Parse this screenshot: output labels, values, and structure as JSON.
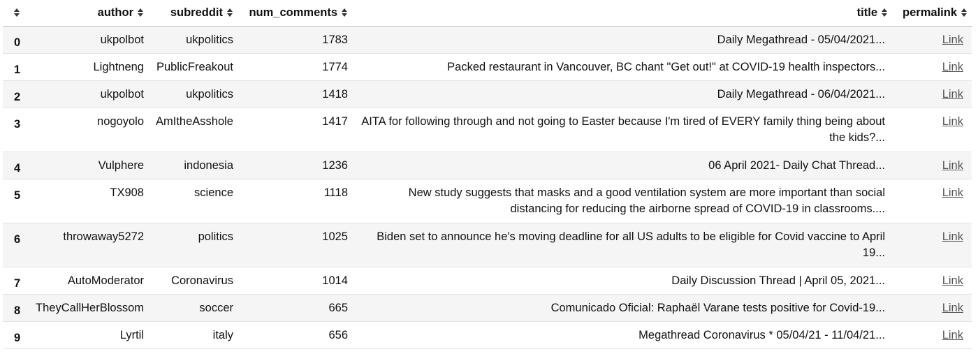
{
  "columns": [
    {
      "key": "index",
      "label": ""
    },
    {
      "key": "author",
      "label": "author"
    },
    {
      "key": "subreddit",
      "label": "subreddit"
    },
    {
      "key": "num_comments",
      "label": "num_comments"
    },
    {
      "key": "title",
      "label": "title"
    },
    {
      "key": "permalink",
      "label": "permalink"
    }
  ],
  "rows": [
    {
      "index": "0",
      "author": "ukpolbot",
      "subreddit": "ukpolitics",
      "num_comments": "1783",
      "title": "Daily Megathread - 05/04/2021...",
      "permalink": "Link"
    },
    {
      "index": "1",
      "author": "Lightneng",
      "subreddit": "PublicFreakout",
      "num_comments": "1774",
      "title": "Packed restaurant in Vancouver, BC chant \"Get out!\" at COVID-19 health inspectors...",
      "permalink": "Link"
    },
    {
      "index": "2",
      "author": "ukpolbot",
      "subreddit": "ukpolitics",
      "num_comments": "1418",
      "title": "Daily Megathread - 06/04/2021...",
      "permalink": "Link"
    },
    {
      "index": "3",
      "author": "nogoyolo",
      "subreddit": "AmItheAsshole",
      "num_comments": "1417",
      "title": "AITA for following through and not going to Easter because I'm tired of EVERY family thing being about the kids?...",
      "permalink": "Link"
    },
    {
      "index": "4",
      "author": "Vulphere",
      "subreddit": "indonesia",
      "num_comments": "1236",
      "title": "06 April 2021- Daily Chat Thread...",
      "permalink": "Link"
    },
    {
      "index": "5",
      "author": "TX908",
      "subreddit": "science",
      "num_comments": "1118",
      "title": "New study suggests that masks and a good ventilation system are more important than social distancing for reducing the airborne spread of COVID-19 in classrooms....",
      "permalink": "Link"
    },
    {
      "index": "6",
      "author": "throwaway5272",
      "subreddit": "politics",
      "num_comments": "1025",
      "title": "Biden set to announce he's moving deadline for all US adults to be eligible for Covid vaccine to April 19...",
      "permalink": "Link"
    },
    {
      "index": "7",
      "author": "AutoModerator",
      "subreddit": "Coronavirus",
      "num_comments": "1014",
      "title": "Daily Discussion Thread | April 05, 2021...",
      "permalink": "Link"
    },
    {
      "index": "8",
      "author": "TheyCallHerBlossom",
      "subreddit": "soccer",
      "num_comments": "665",
      "title": "Comunicado Oficial: Raphaël Varane tests positive for Covid-19...",
      "permalink": "Link"
    },
    {
      "index": "9",
      "author": "Lyrtil",
      "subreddit": "italy",
      "num_comments": "656",
      "title": "Megathread Coronavirus * 05/04/21 - 11/04/21...",
      "permalink": "Link"
    }
  ],
  "icons": {
    "sort": "sort-updown-icon"
  },
  "colors": {
    "stripe": "#f5f5f5",
    "link": "#555555",
    "header_border": "#bdbdbd"
  }
}
